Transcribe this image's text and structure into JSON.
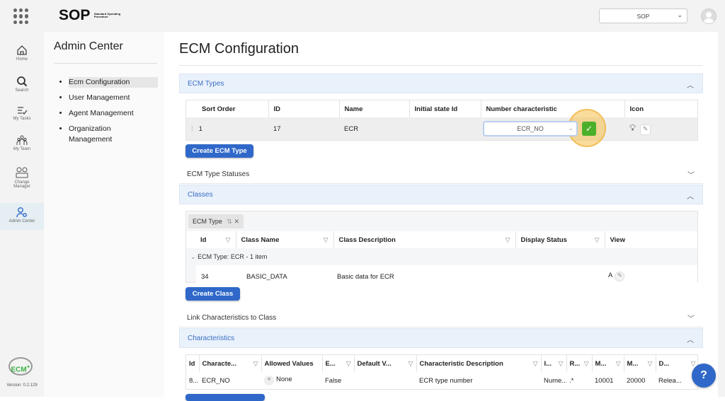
{
  "topbar": {
    "logo": "SOP",
    "logo_sub": "Standard Operating Procedure",
    "workspace_select": "SOP"
  },
  "rail": [
    {
      "label": "Home",
      "icon": "home-icon"
    },
    {
      "label": "Search",
      "icon": "search-icon"
    },
    {
      "label": "My Tasks",
      "icon": "tasks-icon"
    },
    {
      "label": "My Team",
      "icon": "team-icon"
    },
    {
      "label": "Change Manager",
      "icon": "change-manager-icon"
    },
    {
      "label": "Admin Center",
      "icon": "admin-icon",
      "active": true
    }
  ],
  "version": "Version: 0.2.129",
  "ecm_logo": "ECM",
  "admin": {
    "title": "Admin Center",
    "items": [
      "Ecm Configuration",
      "User Management",
      "Agent Management",
      "Organization Management"
    ]
  },
  "page_title": "ECM Configuration",
  "ecm_types": {
    "title": "ECM Types",
    "columns": [
      "Sort Order",
      "ID",
      "Name",
      "Initial state Id",
      "Number characteristic",
      "Icon"
    ],
    "row": {
      "sort": "1",
      "id": "17",
      "name": "ECR",
      "initial": "",
      "number": "ECR_NO"
    },
    "create_button": "Create ECM Type"
  },
  "statuses": {
    "title": "ECM Type Statuses"
  },
  "classes": {
    "title": "Classes",
    "group_chip": "ECM Type",
    "columns": [
      "Id",
      "Class Name",
      "Class Description",
      "Display Status",
      "View"
    ],
    "group_row": "ECM Type: ECR - 1 item",
    "row": {
      "id": "34",
      "name": "BASIC_DATA",
      "desc": "Basic data for ECR",
      "status": "",
      "view": "A"
    },
    "create_button": "Create Class"
  },
  "link": {
    "title": "Link Characteristics to Class"
  },
  "characteristics": {
    "title": "Characteristics",
    "columns": [
      "Id",
      "Characte...",
      "Allowed Values",
      "E...",
      "Default V...",
      "Characteristic Description",
      "I...",
      "R...",
      "M...",
      "M...",
      "D..."
    ],
    "row": [
      "8...",
      "ECR_NO",
      "None",
      "False",
      "",
      "ECR type number",
      "Nume...",
      ".*",
      "10001",
      "20000",
      "Relea..."
    ]
  },
  "help": "?",
  "colors": {
    "accent": "#2f68c9",
    "section_bg": "#e9f1fb",
    "confirm": "#4caf2a",
    "highlight": "#f5c04a"
  }
}
